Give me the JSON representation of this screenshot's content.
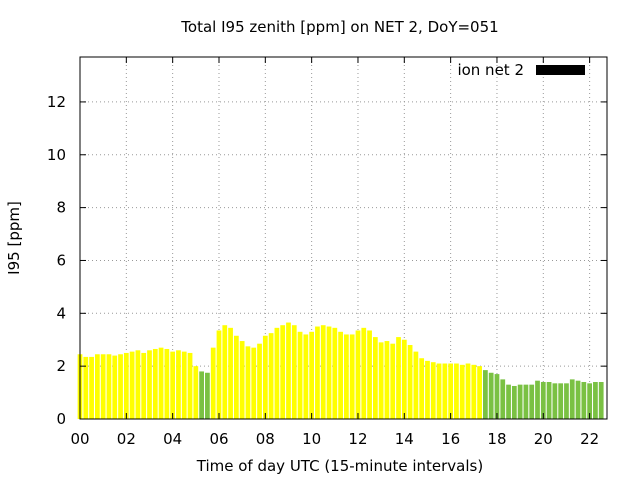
{
  "chart_data": {
    "type": "bar",
    "title": "Total I95 zenith [ppm] on NET 2, DoY=051",
    "xlabel": "Time of day UTC (15-minute intervals)",
    "ylabel": "I95 [ppm]",
    "xlim": [
      0,
      22.75
    ],
    "ylim": [
      0,
      13.7
    ],
    "x_ticks": [
      {
        "value": 0,
        "label": "00"
      },
      {
        "value": 2,
        "label": "02"
      },
      {
        "value": 4,
        "label": "04"
      },
      {
        "value": 6,
        "label": "06"
      },
      {
        "value": 8,
        "label": "08"
      },
      {
        "value": 10,
        "label": "10"
      },
      {
        "value": 12,
        "label": "12"
      },
      {
        "value": 14,
        "label": "14"
      },
      {
        "value": 16,
        "label": "16"
      },
      {
        "value": 18,
        "label": "18"
      },
      {
        "value": 20,
        "label": "20"
      },
      {
        "value": 22,
        "label": "22"
      }
    ],
    "y_ticks": [
      {
        "value": 0,
        "label": "0"
      },
      {
        "value": 2,
        "label": "2"
      },
      {
        "value": 4,
        "label": "4"
      },
      {
        "value": 6,
        "label": "6"
      },
      {
        "value": 8,
        "label": "8"
      },
      {
        "value": 10,
        "label": "10"
      },
      {
        "value": 12,
        "label": "12"
      }
    ],
    "grid": true,
    "legend": {
      "label": "ion net 2",
      "position": "top-right",
      "color": "#000000"
    },
    "colors": {
      "yellow": "#ffff00",
      "green": "#7ac143"
    },
    "interval_hours": 0.25,
    "values": [
      2.45,
      2.35,
      2.35,
      2.45,
      2.45,
      2.45,
      2.4,
      2.45,
      2.5,
      2.55,
      2.6,
      2.5,
      2.6,
      2.65,
      2.7,
      2.65,
      2.55,
      2.6,
      2.55,
      2.5,
      2.0,
      1.8,
      1.75,
      2.7,
      3.35,
      3.55,
      3.45,
      3.15,
      2.95,
      2.75,
      2.7,
      2.85,
      3.15,
      3.25,
      3.45,
      3.55,
      3.65,
      3.55,
      3.3,
      3.2,
      3.3,
      3.5,
      3.55,
      3.5,
      3.45,
      3.3,
      3.2,
      3.2,
      3.35,
      3.45,
      3.35,
      3.1,
      2.9,
      2.95,
      2.85,
      3.1,
      3.0,
      2.8,
      2.55,
      2.3,
      2.2,
      2.15,
      2.1,
      2.1,
      2.1,
      2.1,
      2.05,
      2.1,
      2.05,
      2.0,
      1.85,
      1.75,
      1.7,
      1.5,
      1.3,
      1.25,
      1.3,
      1.3,
      1.3,
      1.45,
      1.4,
      1.4,
      1.35,
      1.35,
      1.35,
      1.5,
      1.45,
      1.4,
      1.35,
      1.4,
      1.4
    ],
    "bar_colors": [
      "yellow",
      "yellow",
      "yellow",
      "yellow",
      "yellow",
      "yellow",
      "yellow",
      "yellow",
      "yellow",
      "yellow",
      "yellow",
      "yellow",
      "yellow",
      "yellow",
      "yellow",
      "yellow",
      "yellow",
      "yellow",
      "yellow",
      "yellow",
      "yellow",
      "green",
      "green",
      "yellow",
      "yellow",
      "yellow",
      "yellow",
      "yellow",
      "yellow",
      "yellow",
      "yellow",
      "yellow",
      "yellow",
      "yellow",
      "yellow",
      "yellow",
      "yellow",
      "yellow",
      "yellow",
      "yellow",
      "yellow",
      "yellow",
      "yellow",
      "yellow",
      "yellow",
      "yellow",
      "yellow",
      "yellow",
      "yellow",
      "yellow",
      "yellow",
      "yellow",
      "yellow",
      "yellow",
      "yellow",
      "yellow",
      "yellow",
      "yellow",
      "yellow",
      "yellow",
      "yellow",
      "yellow",
      "yellow",
      "yellow",
      "yellow",
      "yellow",
      "yellow",
      "yellow",
      "yellow",
      "yellow",
      "green",
      "green",
      "green",
      "green",
      "green",
      "green",
      "green",
      "green",
      "green",
      "green",
      "green",
      "green",
      "green",
      "green",
      "green",
      "green",
      "green",
      "green",
      "green",
      "green",
      "green"
    ]
  }
}
